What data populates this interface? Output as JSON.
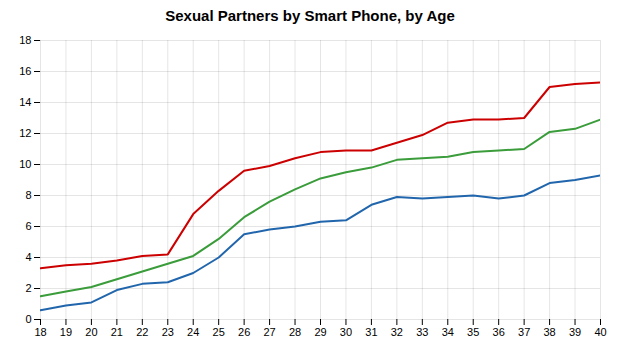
{
  "chart_data": {
    "type": "line",
    "title": "Sexual Partners by Smart Phone, by Age",
    "x": [
      18,
      19,
      20,
      21,
      22,
      23,
      24,
      25,
      26,
      27,
      28,
      29,
      30,
      31,
      32,
      33,
      34,
      35,
      36,
      37,
      38,
      39,
      40
    ],
    "series": [
      {
        "color": "#cc0000",
        "values": [
          3.3,
          3.5,
          3.6,
          3.8,
          4.1,
          4.2,
          6.8,
          8.3,
          9.6,
          9.9,
          10.4,
          10.8,
          10.9,
          10.9,
          11.4,
          11.9,
          12.7,
          12.9,
          12.9,
          13.0,
          15.0,
          15.2,
          15.3
        ]
      },
      {
        "color": "#3a9c3a",
        "values": [
          1.5,
          1.8,
          2.1,
          2.6,
          3.1,
          3.6,
          4.1,
          5.2,
          6.6,
          7.6,
          8.4,
          9.1,
          9.5,
          9.8,
          10.3,
          10.4,
          10.5,
          10.8,
          10.9,
          11.0,
          12.1,
          12.3,
          12.9
        ]
      },
      {
        "color": "#2166ac",
        "values": [
          0.6,
          0.9,
          1.1,
          1.9,
          2.3,
          2.4,
          3.0,
          4.0,
          5.5,
          5.8,
          6.0,
          6.3,
          6.4,
          7.4,
          7.9,
          7.8,
          7.9,
          8.0,
          7.8,
          8.0,
          8.8,
          9.0,
          9.3
        ]
      }
    ],
    "xlim": [
      18,
      40
    ],
    "xticks": [
      18,
      19,
      20,
      21,
      22,
      23,
      24,
      25,
      26,
      27,
      28,
      29,
      30,
      31,
      32,
      33,
      34,
      35,
      36,
      37,
      38,
      39,
      40
    ],
    "ylim": [
      0,
      18
    ],
    "yticks": [
      0,
      2,
      4,
      6,
      8,
      10,
      12,
      14,
      16,
      18
    ],
    "grid": true
  }
}
